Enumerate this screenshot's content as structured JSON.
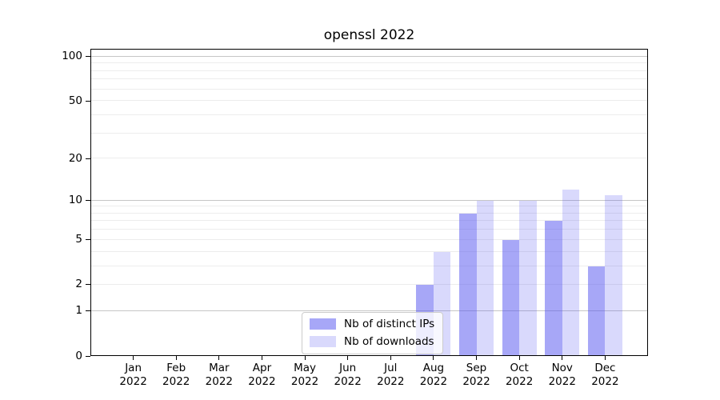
{
  "chart_data": {
    "type": "bar",
    "title": "openssl 2022",
    "year": "2022",
    "categories": [
      "Jan",
      "Feb",
      "Mar",
      "Apr",
      "May",
      "Jun",
      "Jul",
      "Aug",
      "Sep",
      "Oct",
      "Nov",
      "Dec"
    ],
    "series": [
      {
        "name": "Nb of distinct IPs",
        "color": "rgba(80,80,240,0.5)",
        "values": [
          0,
          0,
          0,
          0,
          0,
          0,
          0,
          2,
          8,
          5,
          7,
          3
        ]
      },
      {
        "name": "Nb of downloads",
        "color": "rgba(80,80,240,0.22)",
        "values": [
          0,
          0,
          0,
          0,
          0,
          0,
          0,
          4,
          10,
          10,
          12,
          11
        ]
      }
    ],
    "yscale": "log1p",
    "ylim_top": 113,
    "yticks": [
      100,
      50,
      20,
      10,
      5,
      2,
      1,
      0
    ],
    "grid": {
      "major": [
        1,
        10,
        100
      ],
      "minor": [
        2,
        3,
        4,
        5,
        6,
        7,
        8,
        9,
        20,
        30,
        40,
        50,
        60,
        70,
        80,
        90
      ],
      "major_color": "#c6c6c6",
      "minor_color": "#ececec"
    },
    "legend_position": "lower center",
    "axis_color": "#000000",
    "background_color": "#ffffff"
  }
}
